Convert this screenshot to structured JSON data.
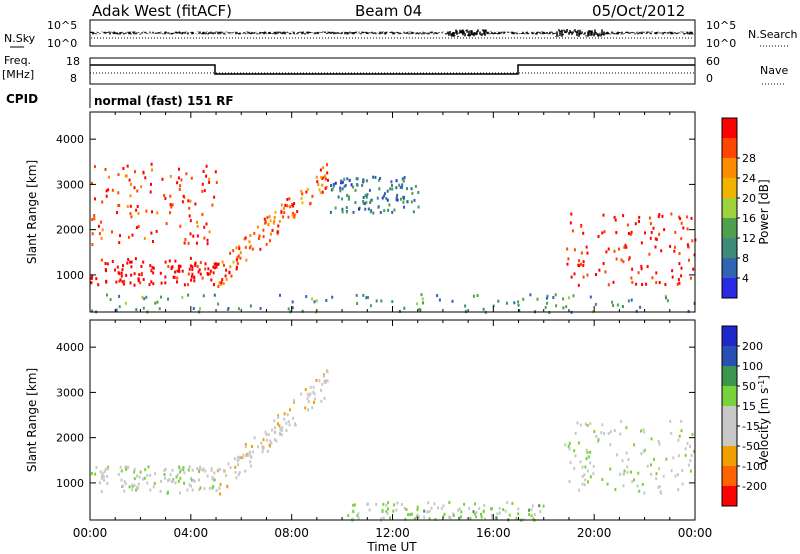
{
  "header": {
    "station": "Adak West (fitACF)",
    "beam": "Beam 04",
    "date": "05/Oct/2012"
  },
  "noise_panel": {
    "left_label": "N.Sky",
    "right_label": "N.Search",
    "left_ticks": [
      "10^5",
      "10^0"
    ],
    "right_ticks": [
      "10^5",
      "10^0"
    ]
  },
  "freq_panel": {
    "left_label_line1": "Freq.",
    "left_label_line2": "[MHz]",
    "left_ticks": [
      "18",
      "8"
    ],
    "right_ticks": [
      "60",
      "0"
    ],
    "right_label": "Nave"
  },
  "cpid": {
    "label": "CPID",
    "text": "normal (fast) 151 RF"
  },
  "colors": {
    "power": [
      "#2a2ae6",
      "#3264b4",
      "#3c8c78",
      "#50a050",
      "#a0d23c",
      "#f0b400",
      "#ff8c00",
      "#ff4600",
      "#ff0000"
    ],
    "velocity": [
      "#ff0000",
      "#ff6400",
      "#f0a000",
      "#c8c8c8",
      "#c8c8c8",
      "#78d23c",
      "#3c9650",
      "#2850b4",
      "#1e28c8"
    ]
  },
  "chart_data": [
    {
      "type": "heatmap",
      "title": "Power",
      "xlabel": "Time UT",
      "ylabel": "Slant Range [km]",
      "xlim": [
        "00:00",
        "24:00"
      ],
      "ylim": [
        180,
        4600
      ],
      "x_ticks": [
        "00:00",
        "04:00",
        "08:00",
        "12:00",
        "16:00",
        "20:00",
        "00:00"
      ],
      "y_ticks": [
        "1000",
        "2000",
        "3000",
        "4000"
      ],
      "colorbar": {
        "label": "Power [dB]",
        "ticks": [
          "4",
          "8",
          "12",
          "16",
          "20",
          "24",
          "28"
        ]
      },
      "scatter_regions": [
        {
          "region": "main echo band",
          "time_h": [
            0,
            5
          ],
          "range_km": [
            800,
            1400
          ],
          "power_db": 30
        },
        {
          "region": "upper bands",
          "time_h": [
            0,
            5
          ],
          "range_km": [
            1700,
            3500
          ],
          "power_db": 26
        },
        {
          "region": "rising arc",
          "time_h": [
            5,
            9.5
          ],
          "range_km": [
            900,
            3600
          ],
          "power_db": 24
        },
        {
          "region": "arc tail",
          "time_h": [
            9.5,
            13
          ],
          "range_km": [
            2400,
            3200
          ],
          "power_db": 6
        },
        {
          "region": "evening echoes",
          "time_h": [
            18.8,
            24
          ],
          "range_km": [
            800,
            2400
          ],
          "power_db": 28
        },
        {
          "region": "near ground scatter",
          "time_h": [
            0,
            24
          ],
          "range_km": [
            180,
            600
          ],
          "power_db": 8
        }
      ]
    },
    {
      "type": "heatmap",
      "title": "Velocity",
      "xlabel": "Time UT",
      "ylabel": "Slant Range [km]",
      "xlim": [
        "00:00",
        "24:00"
      ],
      "ylim": [
        180,
        4600
      ],
      "x_ticks": [
        "00:00",
        "04:00",
        "08:00",
        "12:00",
        "16:00",
        "20:00",
        "00:00"
      ],
      "y_ticks": [
        "1000",
        "2000",
        "3000",
        "4000"
      ],
      "colorbar": {
        "label": "Velocity [m s^-1]",
        "ticks": [
          "200",
          "100",
          "50",
          "15",
          "-15",
          "-50",
          "-100",
          "-200"
        ]
      },
      "scatter_regions": [
        {
          "region": "main echo band",
          "time_h": [
            0,
            5
          ],
          "range_km": [
            800,
            1400
          ],
          "velocity": 0
        },
        {
          "region": "rising arc",
          "time_h": [
            5,
            9.5
          ],
          "range_km": [
            900,
            3600
          ],
          "velocity": -40
        },
        {
          "region": "evening echoes",
          "time_h": [
            18.8,
            24
          ],
          "range_km": [
            800,
            2400
          ],
          "velocity": 0
        },
        {
          "region": "near ground scatter",
          "time_h": [
            10,
            18
          ],
          "range_km": [
            180,
            600
          ],
          "velocity": 30
        }
      ]
    }
  ]
}
